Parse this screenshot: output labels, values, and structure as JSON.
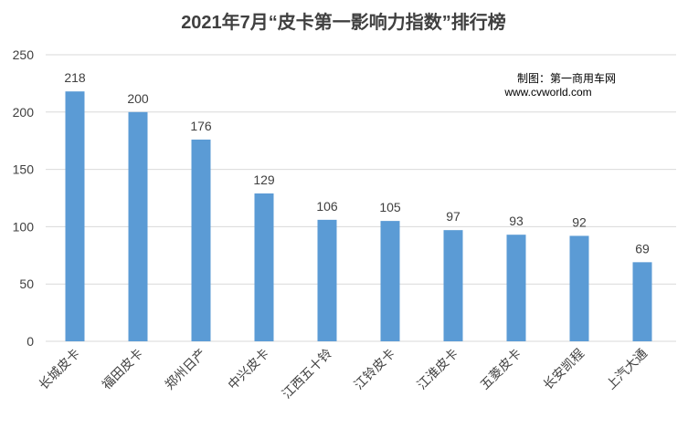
{
  "chart_data": {
    "type": "bar",
    "title": "2021年7月“皮卡第一影响力指数”排行榜",
    "categories": [
      "长城皮卡",
      "福田皮卡",
      "郑州日产",
      "中兴皮卡",
      "江西五十铃",
      "江铃皮卡",
      "江淮皮卡",
      "五菱皮卡",
      "长安凯程",
      "上汽大通"
    ],
    "values": [
      218,
      200,
      176,
      129,
      106,
      105,
      97,
      93,
      92,
      69
    ],
    "ylim": [
      0,
      250
    ],
    "yticks": [
      0,
      50,
      100,
      150,
      200,
      250
    ],
    "grid": true,
    "legend": "none",
    "bar_color": "#5b9bd5",
    "grid_color": "#d9d9d9",
    "annotations": [
      "制图：第一商用车网",
      "www.cvworld.com"
    ]
  }
}
